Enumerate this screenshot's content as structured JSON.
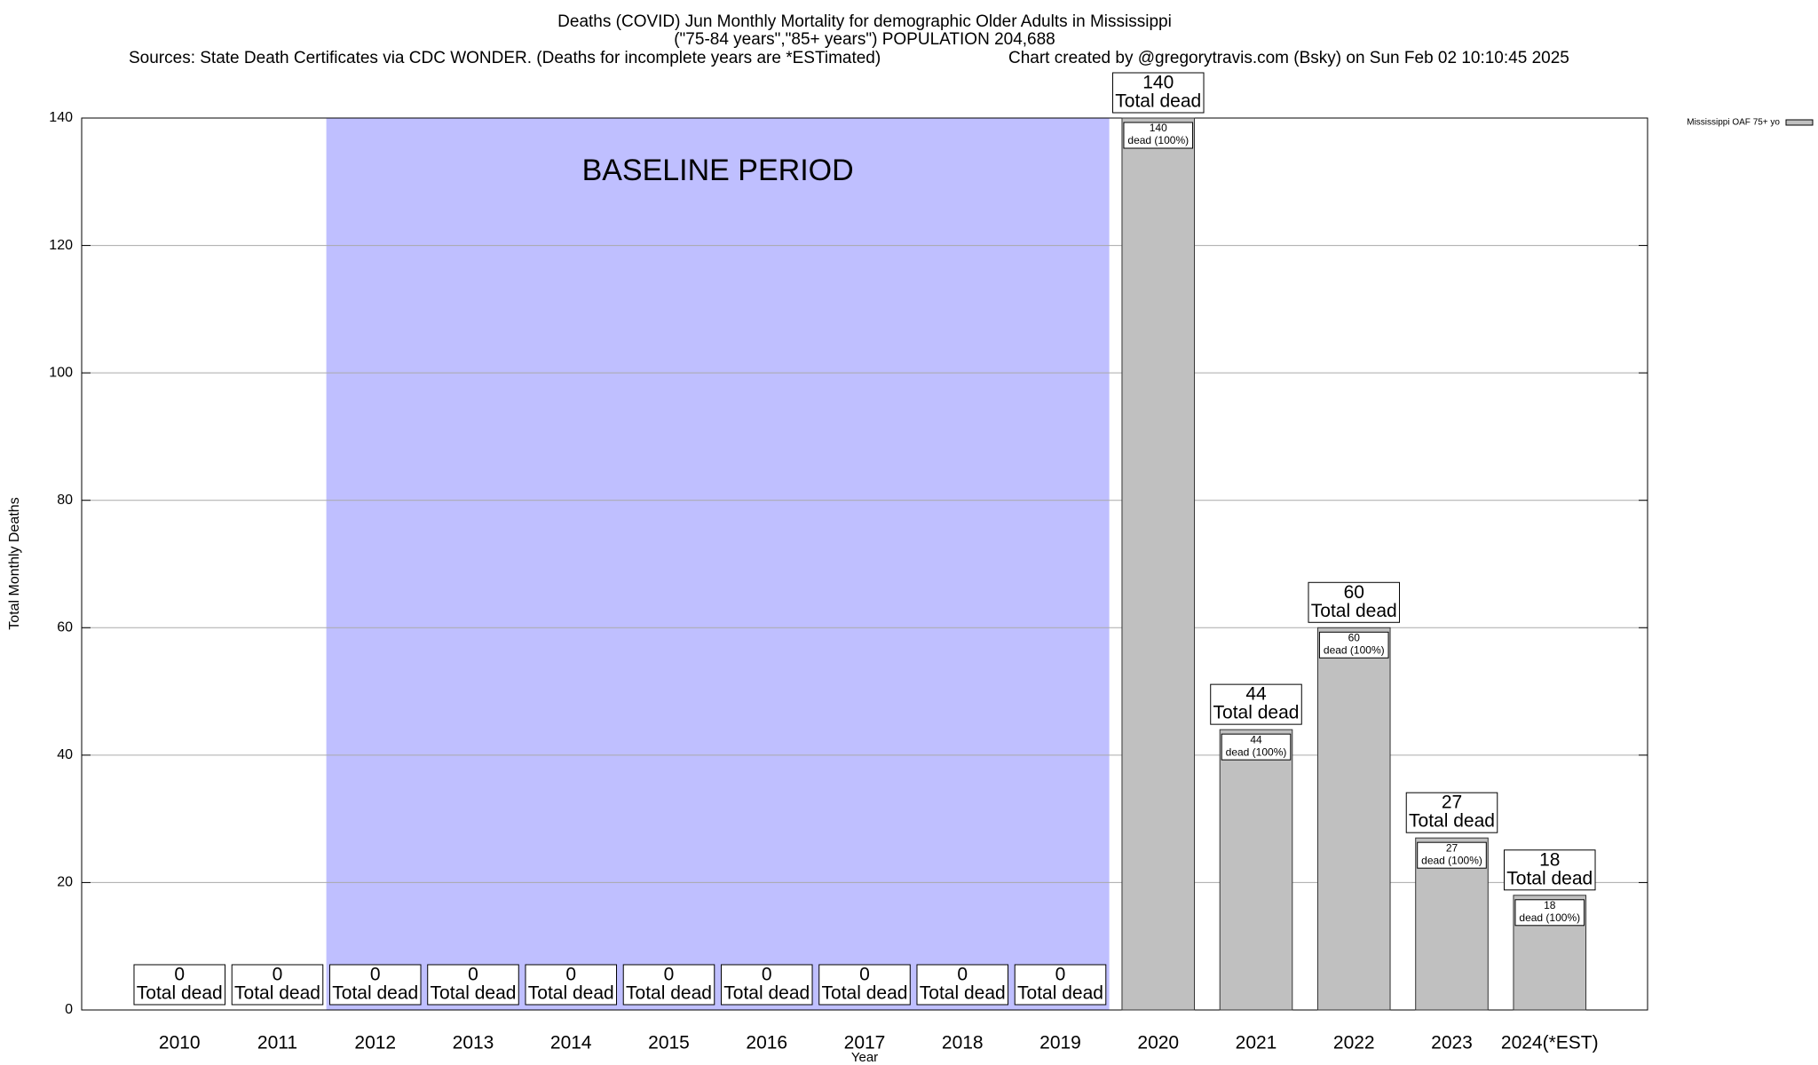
{
  "chart_data": {
    "type": "bar",
    "title": "Deaths (COVID) Jun Monthly Mortality for demographic Older Adults in Mississippi",
    "subtitle": "(\"75-84 years\",\"85+ years\") POPULATION 204,688",
    "source": "Sources: State Death Certificates via CDC WONDER. (Deaths for incomplete years are *ESTimated)",
    "credit": "Chart created by @gregorytravis.com (Bsky) on Sun Feb 02 10:10:45 2025",
    "xlabel": "Year",
    "ylabel": "Total Monthly Deaths",
    "annotation": "BASELINE PERIOD",
    "baseline_period": [
      "2012",
      "2019"
    ],
    "shade_color": "#bfbfff",
    "label_total": "Total dead",
    "label_share": "dead (100%)",
    "categories": [
      "2010",
      "2011",
      "2012",
      "2013",
      "2014",
      "2015",
      "2016",
      "2017",
      "2018",
      "2019",
      "2020",
      "2021",
      "2022",
      "2023",
      "2024(*EST)"
    ],
    "series": [
      {
        "name": "Mississippi OAF 75+ yo",
        "color": "#c0c0c0",
        "values": [
          0,
          0,
          0,
          0,
          0,
          0,
          0,
          0,
          0,
          0,
          140,
          44,
          60,
          27,
          18
        ]
      }
    ],
    "ylim": [
      0,
      140
    ],
    "yticks": [
      0,
      20,
      40,
      60,
      80,
      100,
      120,
      140
    ],
    "grid": true,
    "legend": "top-right"
  }
}
